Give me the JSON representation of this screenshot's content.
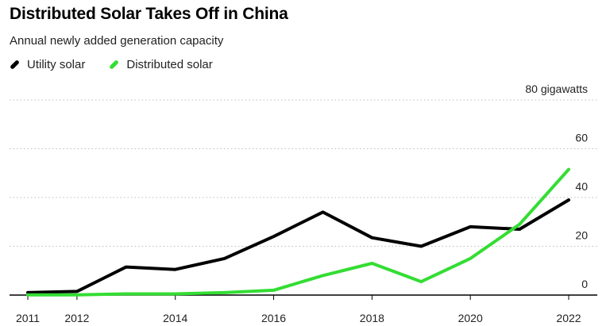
{
  "title": "Distributed Solar Takes Off in China",
  "subtitle": "Annual newly added generation capacity",
  "chart_data": {
    "type": "line",
    "title": "Distributed Solar Takes Off in China",
    "subtitle": "Annual newly added generation capacity",
    "xlabel": "",
    "ylabel": "",
    "y_unit_label": "80 gigawatts",
    "x": [
      2011,
      2012,
      2013,
      2014,
      2015,
      2016,
      2017,
      2018,
      2019,
      2020,
      2021,
      2022
    ],
    "x_tick_labels": [
      "2011",
      "2012",
      "2014",
      "2016",
      "2018",
      "2020",
      "2022"
    ],
    "y_tick_labels": [
      "0",
      "20",
      "40",
      "60"
    ],
    "xlim": [
      2011,
      2022
    ],
    "ylim": [
      0,
      80
    ],
    "y_axis_position": "right",
    "grid": "horizontal dotted",
    "legend_position": "top-left",
    "series": [
      {
        "name": "Utility solar",
        "color": "#000000",
        "values": [
          1,
          1.5,
          11.5,
          10.5,
          15,
          24,
          34,
          23.5,
          20,
          28,
          27,
          39
        ]
      },
      {
        "name": "Distributed solar",
        "color": "#33dd33",
        "values": [
          0.1,
          0.1,
          0.5,
          0.5,
          1,
          2,
          8,
          13,
          5.5,
          15,
          29,
          51.5
        ]
      }
    ]
  }
}
